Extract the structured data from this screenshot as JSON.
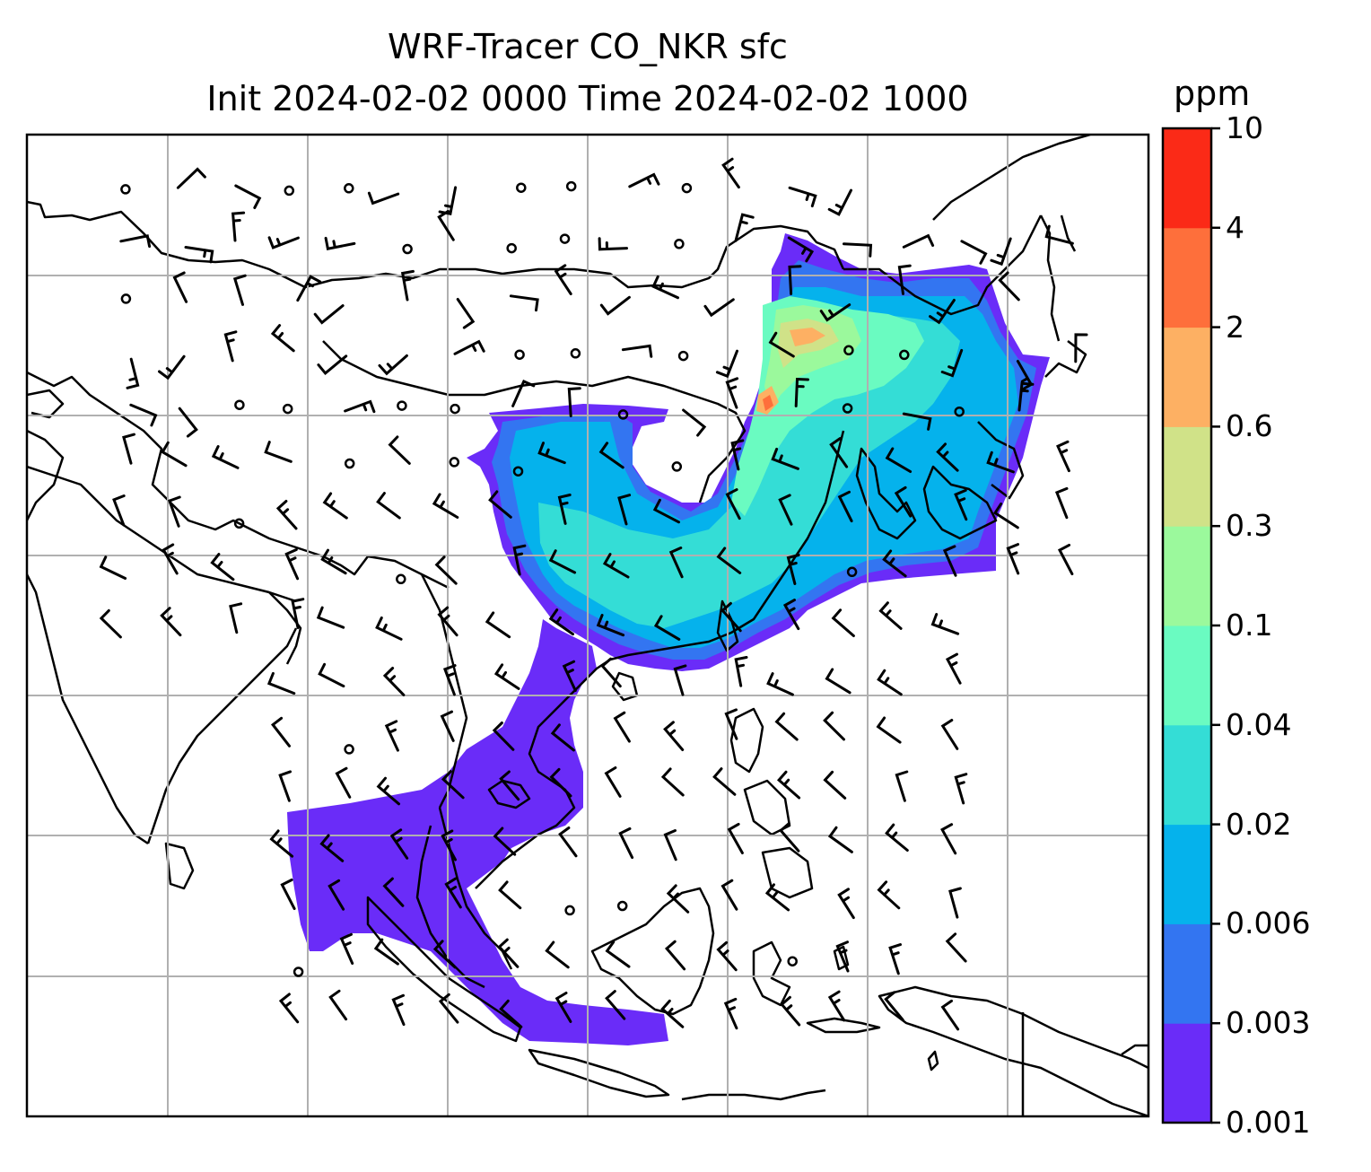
{
  "title": {
    "line1": "WRF-Tracer CO_NKR sfc",
    "line2": "Init 2024-02-02 0000 Time 2024-02-02 1000"
  },
  "colorbar": {
    "units": "ppm",
    "levels": [
      "0.001",
      "0.003",
      "0.006",
      "0.02",
      "0.04",
      "0.1",
      "0.3",
      "0.6",
      "2",
      "4",
      "10"
    ],
    "colors": [
      "#6a2cf8",
      "#3375f1",
      "#05b2ec",
      "#34ddd6",
      "#6afbc1",
      "#9bf99c",
      "#d0e288",
      "#fdb063",
      "#fe6f3b",
      "#fb2a17"
    ]
  },
  "map": {
    "gridlines": true,
    "gridline_color": "#b0b0b0",
    "coastline_color": "#000000",
    "wind_barbs": true,
    "calm_wind_circles": true
  }
}
